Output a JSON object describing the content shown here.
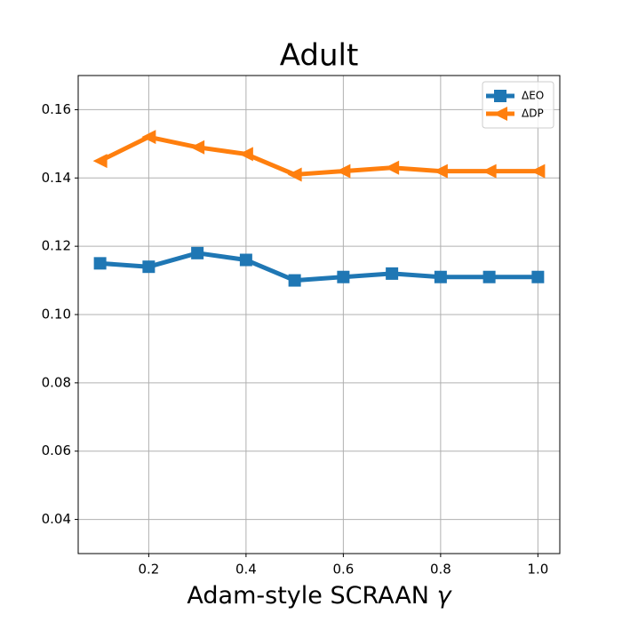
{
  "chart_data": {
    "type": "line",
    "title": "Adult",
    "xlabel": "Adam-style SCRAAN γ",
    "x": [
      0.1,
      0.2,
      0.3,
      0.4,
      0.5,
      0.6,
      0.7,
      0.8,
      0.9,
      1.0
    ],
    "series": [
      {
        "name": "ΔEO",
        "color": "#1f77b4",
        "marker": "square",
        "values": [
          0.115,
          0.114,
          0.118,
          0.116,
          0.11,
          0.111,
          0.112,
          0.111,
          0.111,
          0.111
        ]
      },
      {
        "name": "ΔDP",
        "color": "#ff7f0e",
        "marker": "triangle-left",
        "values": [
          0.145,
          0.152,
          0.149,
          0.147,
          0.141,
          0.142,
          0.143,
          0.142,
          0.142,
          0.142
        ]
      }
    ],
    "xlim": [
      0.055,
      1.045
    ],
    "ylim": [
      0.03,
      0.17
    ],
    "xticks": [
      0.2,
      0.4,
      0.6,
      0.8,
      {
        "value": 1.0,
        "label": "1.0"
      }
    ],
    "yticks": [
      0.04,
      0.06,
      0.08,
      {
        "value": 0.1,
        "label": "0.10"
      },
      0.12,
      0.14,
      0.16
    ],
    "grid": true,
    "legend": "upper right"
  }
}
